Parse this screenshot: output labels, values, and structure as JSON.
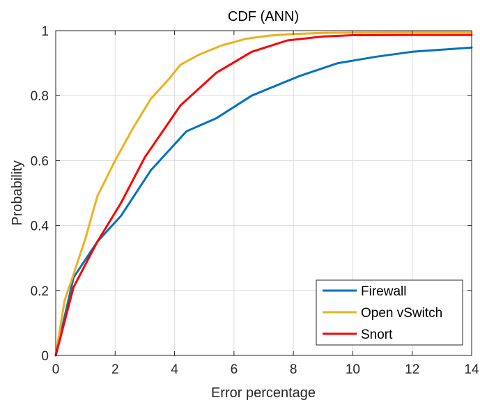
{
  "chart_data": {
    "type": "line",
    "title": "CDF (ANN)",
    "xlabel": "Error percentage",
    "ylabel": "Probability",
    "xlim": [
      0,
      14
    ],
    "ylim": [
      0,
      1
    ],
    "xticks": [
      "0",
      "2",
      "4",
      "6",
      "8",
      "10",
      "12",
      "14"
    ],
    "yticks": [
      "0",
      "0.2",
      "0.4",
      "0.6",
      "0.8",
      "1"
    ],
    "grid": true,
    "legend_position": "bottom-right",
    "series": [
      {
        "name": "Firewall",
        "color": "#0072BD",
        "x": [
          0,
          0.6,
          1.4,
          2.2,
          3.2,
          4.4,
          5.4,
          6.6,
          8.2,
          9.5,
          10.8,
          12,
          14
        ],
        "y": [
          0,
          0.24,
          0.35,
          0.43,
          0.57,
          0.69,
          0.73,
          0.8,
          0.86,
          0.9,
          0.92,
          0.935,
          0.948
        ]
      },
      {
        "name": "Open vSwitch",
        "color": "#EDB120",
        "x": [
          0,
          0.3,
          0.6,
          1.0,
          1.4,
          2.0,
          2.6,
          3.2,
          3.8,
          4.2,
          4.8,
          5.6,
          6.4,
          7.2,
          8.0,
          9.0,
          10.0,
          12.0,
          14.0
        ],
        "y": [
          0,
          0.17,
          0.25,
          0.36,
          0.49,
          0.6,
          0.7,
          0.79,
          0.85,
          0.895,
          0.925,
          0.955,
          0.975,
          0.985,
          0.99,
          0.993,
          0.994,
          0.995,
          0.995
        ]
      },
      {
        "name": "Snort",
        "color": "#FF0000",
        "x": [
          0,
          0.6,
          1.4,
          2.2,
          3.0,
          4.2,
          5.4,
          6.6,
          7.8,
          9.0,
          10.0,
          12.0,
          14.0
        ],
        "y": [
          0,
          0.21,
          0.35,
          0.47,
          0.61,
          0.77,
          0.87,
          0.935,
          0.97,
          0.982,
          0.986,
          0.987,
          0.987
        ]
      }
    ]
  }
}
